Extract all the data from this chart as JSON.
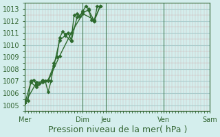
{
  "background_color": "#d4eeed",
  "grid_color": "#aacccc",
  "line_color": "#2d6a2d",
  "marker_color": "#2d6a2d",
  "title": "",
  "xlabel": "Pression niveau de la mer( hPa )",
  "ylim": [
    1004.5,
    1013.5
  ],
  "yticks": [
    1005,
    1006,
    1007,
    1008,
    1009,
    1010,
    1011,
    1012,
    1013
  ],
  "day_labels": [
    "Mer",
    "Dim",
    "Jeu",
    "Ven",
    "Sam"
  ],
  "day_positions": [
    0,
    60,
    84,
    144,
    192
  ],
  "series": [
    [
      0,
      1005.2,
      3,
      1005.4,
      6,
      1007.0,
      9,
      1007.1,
      12,
      1006.7,
      15,
      1006.8,
      18,
      1007.1,
      21,
      1007.0,
      24,
      1006.1,
      27,
      1007.0,
      30,
      1008.5,
      33,
      1009.0,
      36,
      1010.6,
      39,
      1011.1,
      42,
      1010.9,
      45,
      1011.0,
      48,
      1010.4,
      51,
      1012.5,
      54,
      1012.6,
      57,
      1012.4,
      60,
      1012.8,
      63,
      1013.2,
      66,
      1013.0,
      69,
      1012.1,
      72,
      1012.0,
      75,
      1013.2,
      78,
      1013.2
    ],
    [
      0,
      1005.2,
      6,
      1006.9,
      12,
      1006.5,
      18,
      1006.9,
      24,
      1007.1,
      30,
      1008.3,
      36,
      1010.4,
      42,
      1010.8,
      48,
      1010.3,
      54,
      1012.3,
      60,
      1012.7,
      66,
      1012.9,
      72,
      1012.0,
      78,
      1013.2
    ],
    [
      0,
      1005.2,
      12,
      1006.9,
      24,
      1007.0,
      36,
      1009.1,
      48,
      1011.0,
      60,
      1012.6,
      72,
      1012.1,
      78,
      1013.2
    ]
  ],
  "total_hours": 78,
  "xlabel_fontsize": 9,
  "tick_fontsize": 7,
  "label_fontsize": 7
}
